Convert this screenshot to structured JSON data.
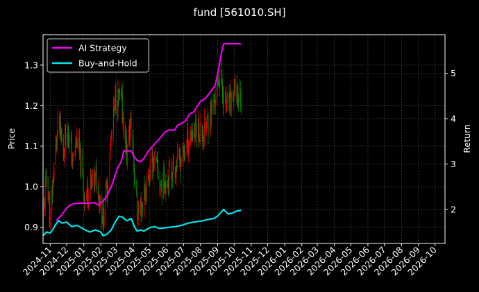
{
  "chart_data": {
    "type": "line",
    "title": "fund [561010.SH]",
    "ylabel": "Price",
    "y2label": "Return",
    "grid": true,
    "legend_position": "top-left",
    "x_ticks": [
      "2024-11",
      "2024-12",
      "2025-01",
      "2025-02",
      "2025-03",
      "2025-04",
      "2025-05",
      "2025-06",
      "2025-07",
      "2025-08",
      "2025-09",
      "2025-10",
      "2025-11",
      "2025-12",
      "2026-01",
      "2026-02",
      "2026-03",
      "2026-04",
      "2026-05",
      "2026-06",
      "2026-07",
      "2026-08",
      "2026-09",
      "2026-10"
    ],
    "x_range": [
      "2024-10-19",
      "2026-10-19"
    ],
    "ylim": [
      0.86,
      1.375
    ],
    "y_ticks": [
      0.9,
      1.0,
      1.1,
      1.2,
      1.3
    ],
    "y2lim": [
      1.25,
      5.85
    ],
    "y2_ticks": [
      2,
      3,
      4,
      5
    ],
    "colors": {
      "background": "#000000",
      "candle_up": "#e00000",
      "candle_down": "#0a8a00",
      "grid": "#555555"
    },
    "price_anchors": [
      [
        "2024-10-19",
        0.92
      ],
      [
        "2024-10-26",
        1.04
      ],
      [
        "2024-11-01",
        0.91
      ],
      [
        "2024-11-08",
        1.05
      ],
      [
        "2024-11-16",
        1.16
      ],
      [
        "2024-11-25",
        1.08
      ],
      [
        "2024-12-01",
        1.16
      ],
      [
        "2024-12-12",
        1.06
      ],
      [
        "2024-12-20",
        1.12
      ],
      [
        "2025-01-03",
        0.97
      ],
      [
        "2025-01-12",
        1.0
      ],
      [
        "2025-01-25",
        1.02
      ],
      [
        "2025-02-05",
        0.92
      ],
      [
        "2025-02-12",
        1.0
      ],
      [
        "2025-02-20",
        1.12
      ],
      [
        "2025-02-28",
        1.22
      ],
      [
        "2025-03-10",
        1.21
      ],
      [
        "2025-03-20",
        1.08
      ],
      [
        "2025-03-28",
        1.16
      ],
      [
        "2025-04-05",
        1.0
      ],
      [
        "2025-04-08",
        0.93
      ],
      [
        "2025-04-18",
        0.96
      ],
      [
        "2025-05-01",
        1.04
      ],
      [
        "2025-05-10",
        1.07
      ],
      [
        "2025-05-20",
        1.0
      ],
      [
        "2025-06-03",
        1.03
      ],
      [
        "2025-06-15",
        1.05
      ],
      [
        "2025-06-28",
        1.07
      ],
      [
        "2025-07-10",
        1.12
      ],
      [
        "2025-07-25",
        1.15
      ],
      [
        "2025-08-05",
        1.13
      ],
      [
        "2025-08-18",
        1.17
      ],
      [
        "2025-08-28",
        1.22
      ],
      [
        "2025-09-05",
        1.28
      ],
      [
        "2025-09-12",
        1.22
      ],
      [
        "2025-09-20",
        1.19
      ],
      [
        "2025-10-01",
        1.23
      ],
      [
        "2025-10-14",
        1.22
      ]
    ],
    "series": [
      {
        "name": "AI Strategy",
        "color": "#ee00ee",
        "points": [
          [
            "2024-11-12",
            1.75
          ],
          [
            "2024-11-22",
            1.88
          ],
          [
            "2024-12-01",
            2.03
          ],
          [
            "2024-12-08",
            2.1
          ],
          [
            "2024-12-15",
            2.13
          ],
          [
            "2025-01-01",
            2.14
          ],
          [
            "2025-01-10",
            2.13
          ],
          [
            "2025-01-20",
            2.15
          ],
          [
            "2025-01-27",
            2.1
          ],
          [
            "2025-02-05",
            2.18
          ],
          [
            "2025-02-12",
            2.3
          ],
          [
            "2025-02-20",
            2.5
          ],
          [
            "2025-02-27",
            2.75
          ],
          [
            "2025-03-04",
            2.93
          ],
          [
            "2025-03-10",
            3.05
          ],
          [
            "2025-03-15",
            3.3
          ],
          [
            "2025-03-20",
            3.28
          ],
          [
            "2025-03-28",
            3.3
          ],
          [
            "2025-04-03",
            3.15
          ],
          [
            "2025-04-08",
            3.08
          ],
          [
            "2025-04-14",
            3.05
          ],
          [
            "2025-04-20",
            3.12
          ],
          [
            "2025-04-28",
            3.28
          ],
          [
            "2025-05-08",
            3.42
          ],
          [
            "2025-05-18",
            3.55
          ],
          [
            "2025-05-28",
            3.7
          ],
          [
            "2025-06-05",
            3.75
          ],
          [
            "2025-06-15",
            3.75
          ],
          [
            "2025-06-20",
            3.85
          ],
          [
            "2025-06-28",
            3.9
          ],
          [
            "2025-07-05",
            3.95
          ],
          [
            "2025-07-12",
            4.1
          ],
          [
            "2025-07-20",
            4.15
          ],
          [
            "2025-07-25",
            4.25
          ],
          [
            "2025-08-01",
            4.38
          ],
          [
            "2025-08-10",
            4.45
          ],
          [
            "2025-08-20",
            4.6
          ],
          [
            "2025-08-28",
            4.75
          ],
          [
            "2025-09-03",
            5.1
          ],
          [
            "2025-09-08",
            5.45
          ],
          [
            "2025-09-12",
            5.65
          ],
          [
            "2025-10-14",
            5.65
          ]
        ]
      },
      {
        "name": "Buy-and-Hold",
        "color": "#00e5ee",
        "points": [
          [
            "2024-10-19",
            1.42
          ],
          [
            "2024-10-25",
            1.5
          ],
          [
            "2024-11-01",
            1.48
          ],
          [
            "2024-11-06",
            1.56
          ],
          [
            "2024-11-10",
            1.65
          ],
          [
            "2024-11-16",
            1.75
          ],
          [
            "2024-11-22",
            1.7
          ],
          [
            "2024-12-01",
            1.72
          ],
          [
            "2024-12-10",
            1.62
          ],
          [
            "2024-12-20",
            1.65
          ],
          [
            "2025-01-03",
            1.55
          ],
          [
            "2025-01-12",
            1.5
          ],
          [
            "2025-01-22",
            1.55
          ],
          [
            "2025-02-01",
            1.5
          ],
          [
            "2025-02-05",
            1.42
          ],
          [
            "2025-02-12",
            1.45
          ],
          [
            "2025-02-20",
            1.55
          ],
          [
            "2025-02-27",
            1.72
          ],
          [
            "2025-03-06",
            1.85
          ],
          [
            "2025-03-12",
            1.83
          ],
          [
            "2025-03-20",
            1.75
          ],
          [
            "2025-03-28",
            1.8
          ],
          [
            "2025-04-03",
            1.62
          ],
          [
            "2025-04-08",
            1.52
          ],
          [
            "2025-04-14",
            1.55
          ],
          [
            "2025-04-20",
            1.52
          ],
          [
            "2025-05-01",
            1.6
          ],
          [
            "2025-05-10",
            1.62
          ],
          [
            "2025-05-18",
            1.58
          ],
          [
            "2025-06-01",
            1.6
          ],
          [
            "2025-06-15",
            1.62
          ],
          [
            "2025-06-28",
            1.65
          ],
          [
            "2025-07-10",
            1.7
          ],
          [
            "2025-07-20",
            1.72
          ],
          [
            "2025-08-05",
            1.75
          ],
          [
            "2025-08-15",
            1.78
          ],
          [
            "2025-08-25",
            1.8
          ],
          [
            "2025-09-01",
            1.85
          ],
          [
            "2025-09-08",
            1.95
          ],
          [
            "2025-09-12",
            2.0
          ],
          [
            "2025-09-20",
            1.9
          ],
          [
            "2025-09-28",
            1.92
          ],
          [
            "2025-10-05",
            1.96
          ],
          [
            "2025-10-14",
            1.98
          ]
        ]
      }
    ]
  }
}
